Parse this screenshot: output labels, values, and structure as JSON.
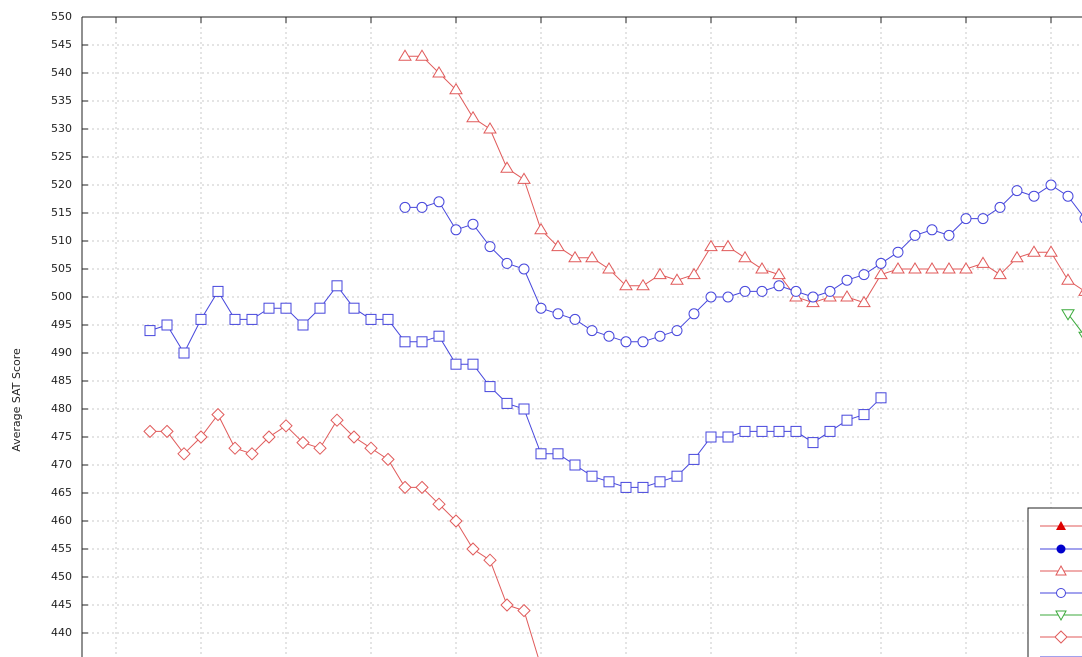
{
  "chart_data": {
    "type": "line",
    "y_label": "Average SAT Score",
    "categories": [
      null,
      null,
      null,
      null,
      null,
      null,
      null,
      null,
      null,
      null,
      null,
      null,
      null,
      null,
      null,
      null,
      null,
      null,
      null,
      null,
      null,
      null,
      null,
      null,
      null,
      null,
      null,
      null,
      null,
      null,
      null,
      null,
      null,
      null,
      null,
      null,
      null,
      null,
      null,
      null,
      null,
      null,
      null,
      null,
      null,
      null,
      null,
      null,
      null,
      null,
      null,
      null,
      null,
      null,
      null,
      null,
      null,
      null,
      null
    ],
    "ylim": [
      435,
      550
    ],
    "yticks": [
      440,
      445,
      450,
      455,
      460,
      465,
      470,
      475,
      480,
      485,
      490,
      495,
      500,
      505,
      510,
      515,
      520,
      525,
      530,
      535,
      540,
      545,
      550
    ],
    "grid": true,
    "series": [
      {
        "color": "#e05a5a",
        "marker": "diamond",
        "values": [
          null,
          null,
          null,
          476,
          476,
          472,
          475,
          479,
          473,
          472,
          475,
          477,
          474,
          473,
          478,
          475,
          473,
          471,
          466,
          466,
          463,
          460,
          455,
          453,
          445,
          444,
          434,
          null,
          null,
          null,
          null,
          null,
          null,
          null,
          null,
          null,
          null,
          null,
          null,
          null,
          null,
          null,
          null,
          null,
          null,
          null,
          null,
          null,
          null,
          null,
          null,
          null,
          null,
          null,
          null,
          null,
          null,
          null,
          null
        ]
      },
      {
        "color": "#4646dc",
        "marker": "square",
        "values": [
          null,
          null,
          null,
          494,
          495,
          490,
          496,
          501,
          496,
          496,
          498,
          498,
          495,
          498,
          502,
          498,
          496,
          496,
          492,
          492,
          493,
          488,
          488,
          484,
          481,
          480,
          472,
          472,
          470,
          468,
          467,
          466,
          466,
          467,
          468,
          471,
          475,
          475,
          476,
          476,
          476,
          476,
          474,
          476,
          478,
          479,
          482,
          null,
          null,
          null,
          null,
          null,
          null,
          null,
          null,
          null,
          null,
          null,
          null
        ]
      },
      {
        "color": "#e05a5a",
        "marker": "triangle",
        "values": [
          null,
          null,
          null,
          null,
          null,
          null,
          null,
          null,
          null,
          null,
          null,
          null,
          null,
          null,
          null,
          null,
          null,
          null,
          543,
          543,
          540,
          537,
          532,
          530,
          523,
          521,
          512,
          509,
          507,
          507,
          505,
          502,
          502,
          504,
          503,
          504,
          509,
          509,
          507,
          505,
          504,
          500,
          499,
          500,
          500,
          499,
          504,
          505,
          505,
          505,
          505,
          505,
          506,
          504,
          507,
          508,
          508,
          503,
          501
        ]
      },
      {
        "color": "#4646dc",
        "marker": "circle",
        "values": [
          null,
          null,
          null,
          null,
          null,
          null,
          null,
          null,
          null,
          null,
          null,
          null,
          null,
          null,
          null,
          null,
          null,
          null,
          516,
          516,
          517,
          512,
          513,
          509,
          506,
          505,
          498,
          497,
          496,
          494,
          493,
          492,
          492,
          493,
          494,
          497,
          500,
          500,
          501,
          501,
          502,
          501,
          500,
          501,
          503,
          504,
          506,
          508,
          511,
          512,
          511,
          514,
          514,
          516,
          519,
          518,
          520,
          518,
          514
        ]
      },
      {
        "color": "#3caa3c",
        "marker": "triangle-down",
        "values": [
          null,
          null,
          null,
          null,
          null,
          null,
          null,
          null,
          null,
          null,
          null,
          null,
          null,
          null,
          null,
          null,
          null,
          null,
          null,
          null,
          null,
          null,
          null,
          null,
          null,
          null,
          null,
          null,
          null,
          null,
          null,
          null,
          null,
          null,
          null,
          null,
          null,
          null,
          null,
          null,
          null,
          null,
          null,
          null,
          null,
          null,
          null,
          null,
          null,
          null,
          null,
          null,
          null,
          null,
          null,
          null,
          null,
          497,
          493
        ]
      }
    ]
  }
}
